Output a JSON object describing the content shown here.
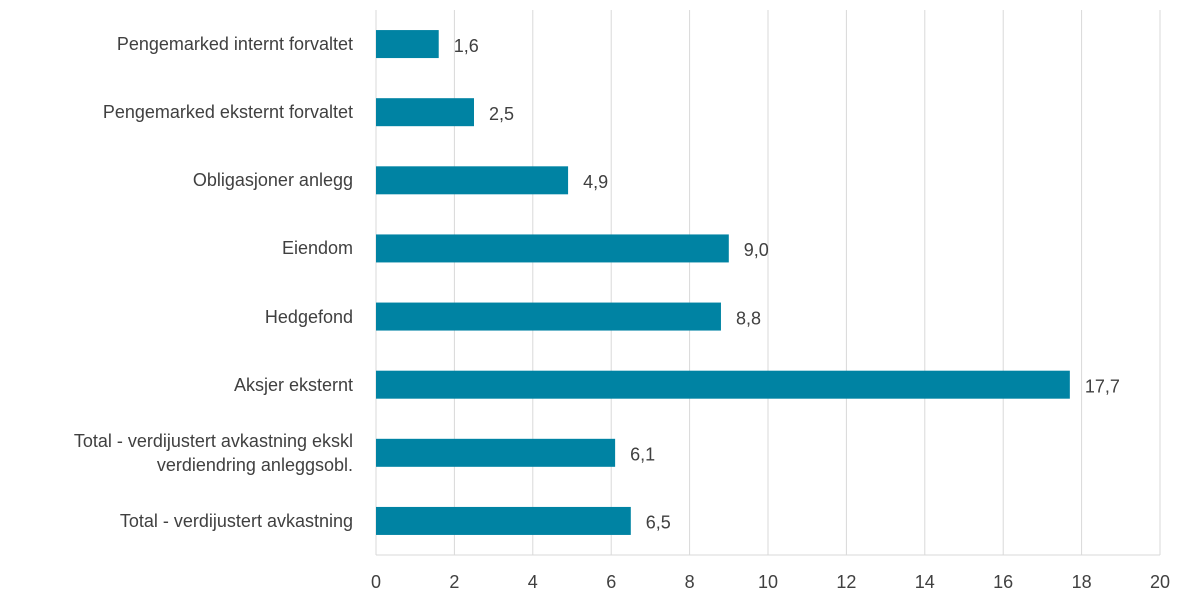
{
  "chart_data": {
    "type": "bar",
    "orientation": "horizontal",
    "categories": [
      "Pengemarked internt forvaltet",
      "Pengemarked eksternt forvaltet",
      "Obligasjoner anlegg",
      "Eiendom ",
      "Hedgefond",
      "Aksjer eksternt",
      "Total - verdijustert avkastning ekskl\nverdiendring anleggsobl.",
      "Total - verdijustert avkastning"
    ],
    "values": [
      1.6,
      2.5,
      4.9,
      9.0,
      8.8,
      17.7,
      6.1,
      6.5
    ],
    "value_labels": [
      "1,6",
      "2,5",
      "4,9",
      "9,0",
      "8,8",
      "17,7",
      "6,1",
      "6,5"
    ],
    "color": "#0083a3",
    "xlim": [
      0,
      20
    ],
    "xticks": [
      0,
      2,
      4,
      6,
      8,
      10,
      12,
      14,
      16,
      18,
      20
    ],
    "grid": true
  }
}
